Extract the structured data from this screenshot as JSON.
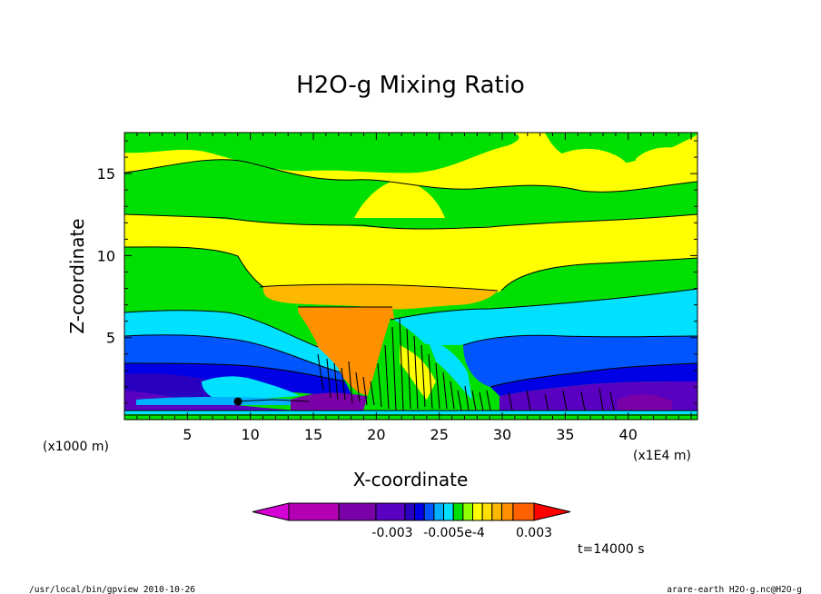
{
  "chart_data": {
    "type": "heatmap",
    "title": "H2O-g Mixing Ratio",
    "xlabel": "X-coordinate",
    "ylabel": "Z-coordinate",
    "x_unit_label": "(x1E4 m)",
    "z_unit_label": "(x1000 m)",
    "xlim": [
      0,
      45.5
    ],
    "ylim": [
      0,
      17.5
    ],
    "x_ticks": [
      "5",
      "10",
      "15",
      "20",
      "25",
      "30",
      "35",
      "40"
    ],
    "y_ticks": [
      "5",
      "10",
      "15"
    ],
    "colorbar": {
      "colors": [
        "#d400d4",
        "#b300b3",
        "#7a00a8",
        "#5a00c0",
        "#2a00c0",
        "#0000e6",
        "#0055ff",
        "#00b0ff",
        "#00e0ff",
        "#00e000",
        "#90ff00",
        "#ffff00",
        "#ffe000",
        "#ffb800",
        "#ff9000",
        "#ff6000",
        "#ff0000"
      ],
      "tick_labels": [
        "-0.003",
        "-0.005e-4",
        "0.003"
      ]
    },
    "time_label": "t=14000 s",
    "footer_left": "/usr/local/bin/gpview  2010-10-26",
    "footer_right": "arare-earth_H2O-g.nc@H2O-g"
  }
}
